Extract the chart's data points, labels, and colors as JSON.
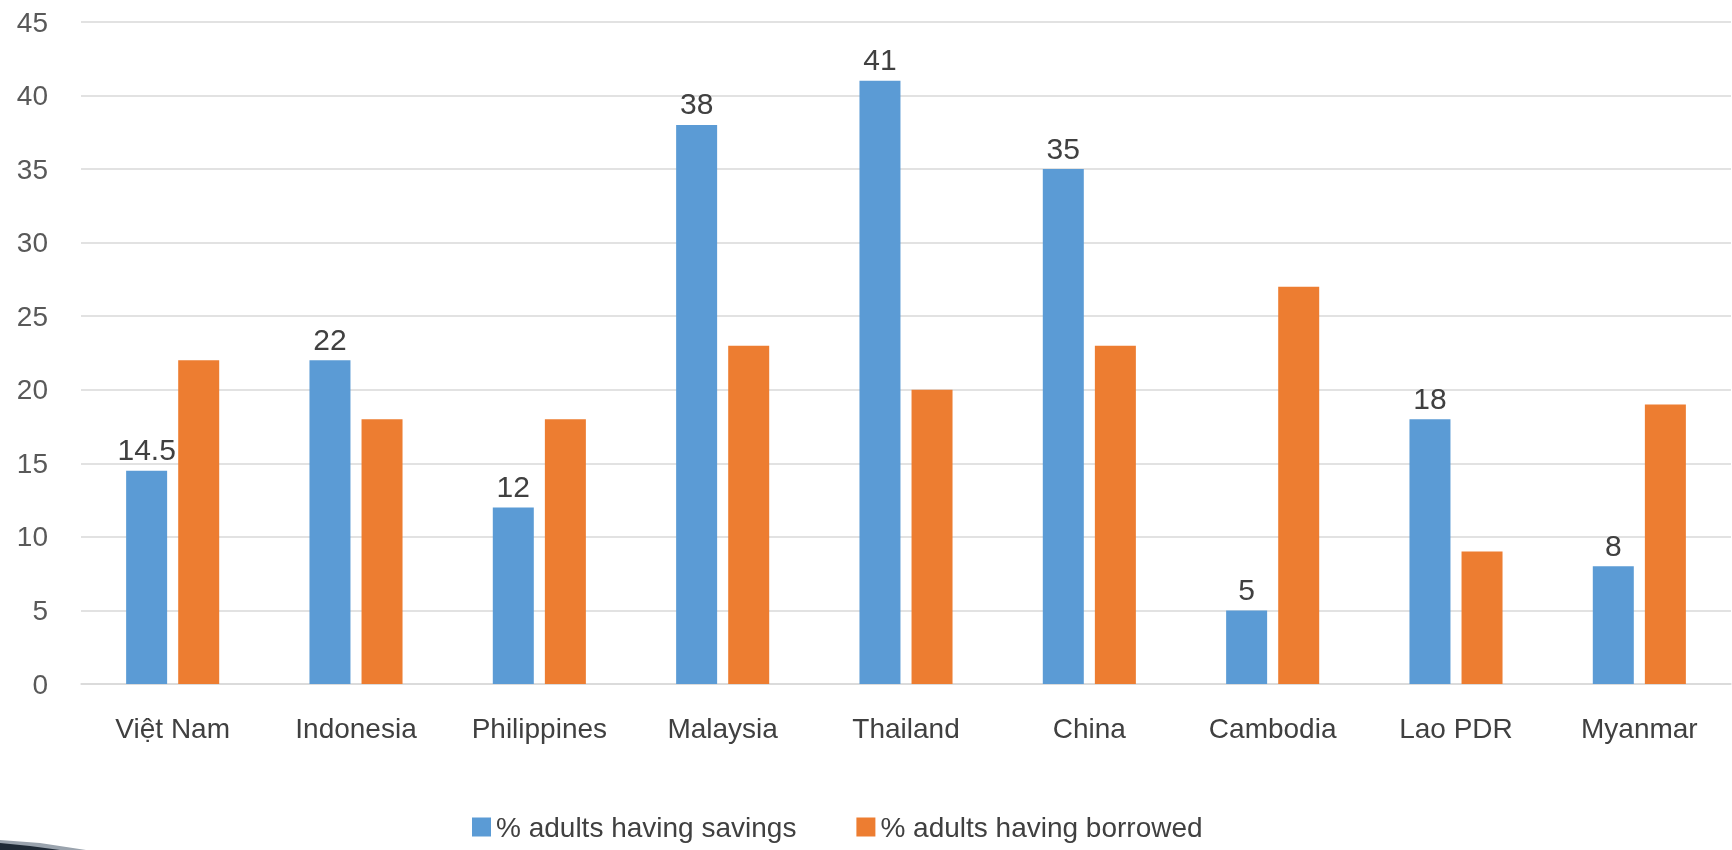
{
  "chart_data": {
    "type": "bar",
    "categories": [
      "Việt Nam",
      "Indonesia",
      "Philippines",
      "Malaysia",
      "Thailand",
      "China",
      "Cambodia",
      "Lao PDR",
      "Myanmar"
    ],
    "series": [
      {
        "name": "% adults having savings",
        "color": "#5b9bd5",
        "values": [
          14.5,
          22,
          12,
          38,
          41,
          35,
          5,
          18,
          8
        ],
        "value_labels": [
          "14.5",
          "22",
          "12",
          "38",
          "41",
          "35",
          "5",
          "18",
          "8"
        ]
      },
      {
        "name": "% adults having borrowed",
        "color": "#ed7d31",
        "values": [
          22,
          18,
          18,
          23,
          20,
          23,
          27,
          9,
          19
        ]
      }
    ],
    "ylim": [
      0,
      45
    ],
    "yticks": [
      0,
      5,
      10,
      15,
      20,
      25,
      30,
      35,
      40,
      45
    ],
    "grid": "y",
    "legend": "bottom"
  }
}
